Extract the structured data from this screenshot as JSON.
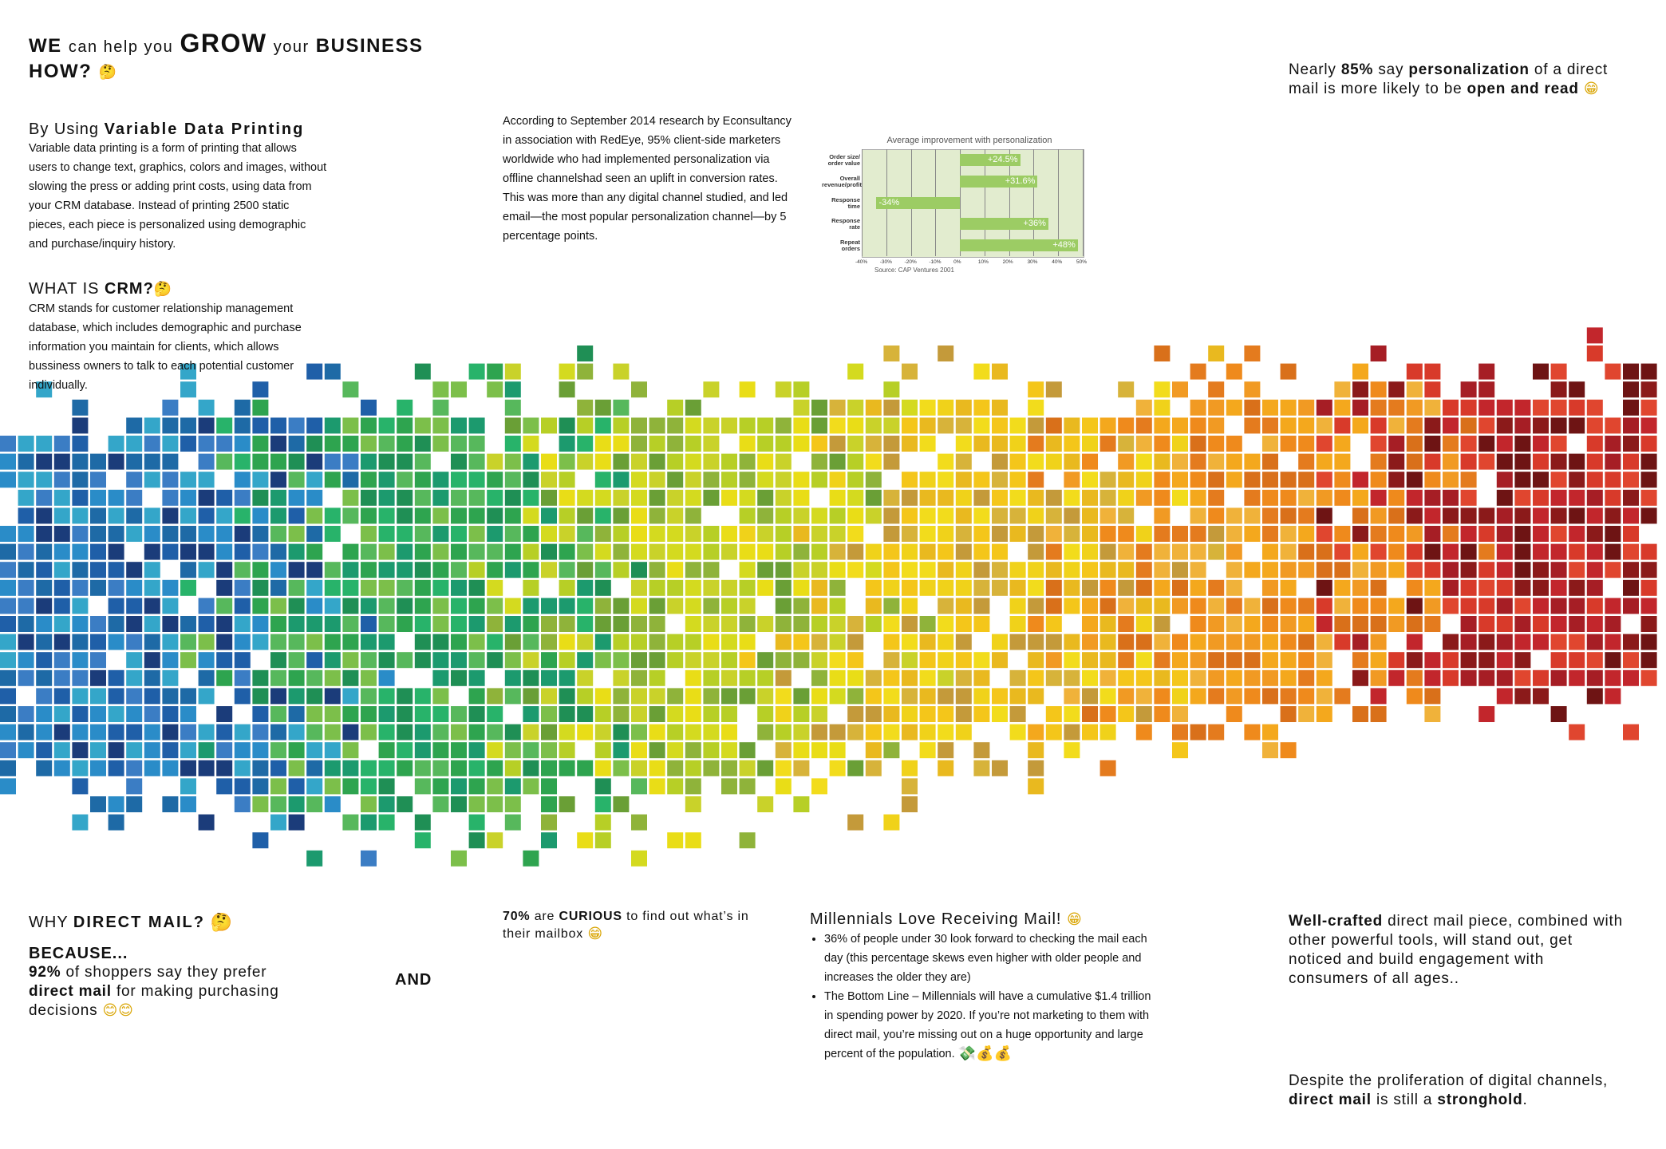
{
  "header": {
    "we": "WE",
    "can_help_you": "can help you",
    "grow": "GROW",
    "your": "your",
    "business": "BUSINESS",
    "how": "HOW?"
  },
  "vdp": {
    "by_using": "By Using",
    "title_bold": "Variable Data Printing",
    "body": "Variable data printing is a form of printing that allows users to change text, graphics, colors and images, without slowing the press or adding print costs, using data from your CRM database. Instead of printing 2500 static pieces, each piece is personalized using demographic and purchase/inquiry history."
  },
  "crm": {
    "what_is": "WHAT IS",
    "crm": "CRM?",
    "body": "CRM stands for customer relationship management database, which includes demographic and purchase information you maintain for clients, which allows bussiness owners to talk to each potential customer individually."
  },
  "research": {
    "body": "According to September 2014 research by Econsultancy in association with RedEye, 95% client-side marketers worldwide who had implemented personalization via offline channelshad seen an uplift in conversion rates. This was more than any digital channel studied, and led email—the most popular personalization channel—by 5 percentage points."
  },
  "chart_data": {
    "type": "bar",
    "title": "Average improvement with personalization",
    "categories": [
      "Order size/ order value",
      "Overall revenue/profit",
      "Response time",
      "Response rate",
      "Repeat orders"
    ],
    "values": [
      24.5,
      31.6,
      -34,
      36,
      48
    ],
    "value_labels": [
      "+24.5%",
      "+31.6%",
      "-34%",
      "+36%",
      "+48%"
    ],
    "x_ticks": [
      "-40%",
      "-30%",
      "-20%",
      "-10%",
      "0%",
      "10%",
      "20%",
      "30%",
      "40%",
      "50%"
    ],
    "xlim": [
      -40,
      50
    ],
    "source": "Source: CAP Ventures 2001"
  },
  "nearly": {
    "pre": "Nearly",
    "pct": "85%",
    "say": "say",
    "personalization": "personalization",
    "mid": "of a direct mail is more likely to be",
    "open_read": "open and read"
  },
  "why": {
    "why": "WHY",
    "direct_mail": "DIRECT MAIL?",
    "because": "BECAUSE...",
    "pct": "92%",
    "line1": "of shoppers say they prefer",
    "dm_bold": "direct mail",
    "line2": "for making purchasing decisions",
    "and": "AND"
  },
  "curious": {
    "pct": "70%",
    "are": "are",
    "curious": "CURIOUS",
    "rest": "to find out what’s in their mailbox"
  },
  "millennials": {
    "title": "Millennials Love Receiving Mail!",
    "bullets": [
      "36% of people under 30 look forward to checking the mail each day (this percentage skews even higher with older people and increases the older they are)",
      "The Bottom Line – Millennials will have a cumulative $1.4 trillion in spending power by 2020. If you’re not marketing to them with direct mail, you’re missing out on a huge opportunity and large percent of the population."
    ]
  },
  "wellcrafted": {
    "bold": "Well-crafted",
    "rest": "direct mail piece, combined with other powerful tools, will stand out, get noticed and build engagement with consumers of all ages.."
  },
  "despite": {
    "pre": "Despite the proliferation of digital channels,",
    "dm": "direct mail",
    "is_still": "is still a",
    "stronghold": "stronghold",
    "end": "."
  },
  "icons": {
    "thinking": "🤔",
    "grin": "😁",
    "smile": "😊",
    "money": "💸",
    "moneybag": "💰"
  },
  "colors": {
    "blue": "#1f6fae",
    "green": "#2e9a48",
    "yellow": "#f0d21a",
    "orange": "#ef8a1c",
    "red": "#c2262c"
  }
}
